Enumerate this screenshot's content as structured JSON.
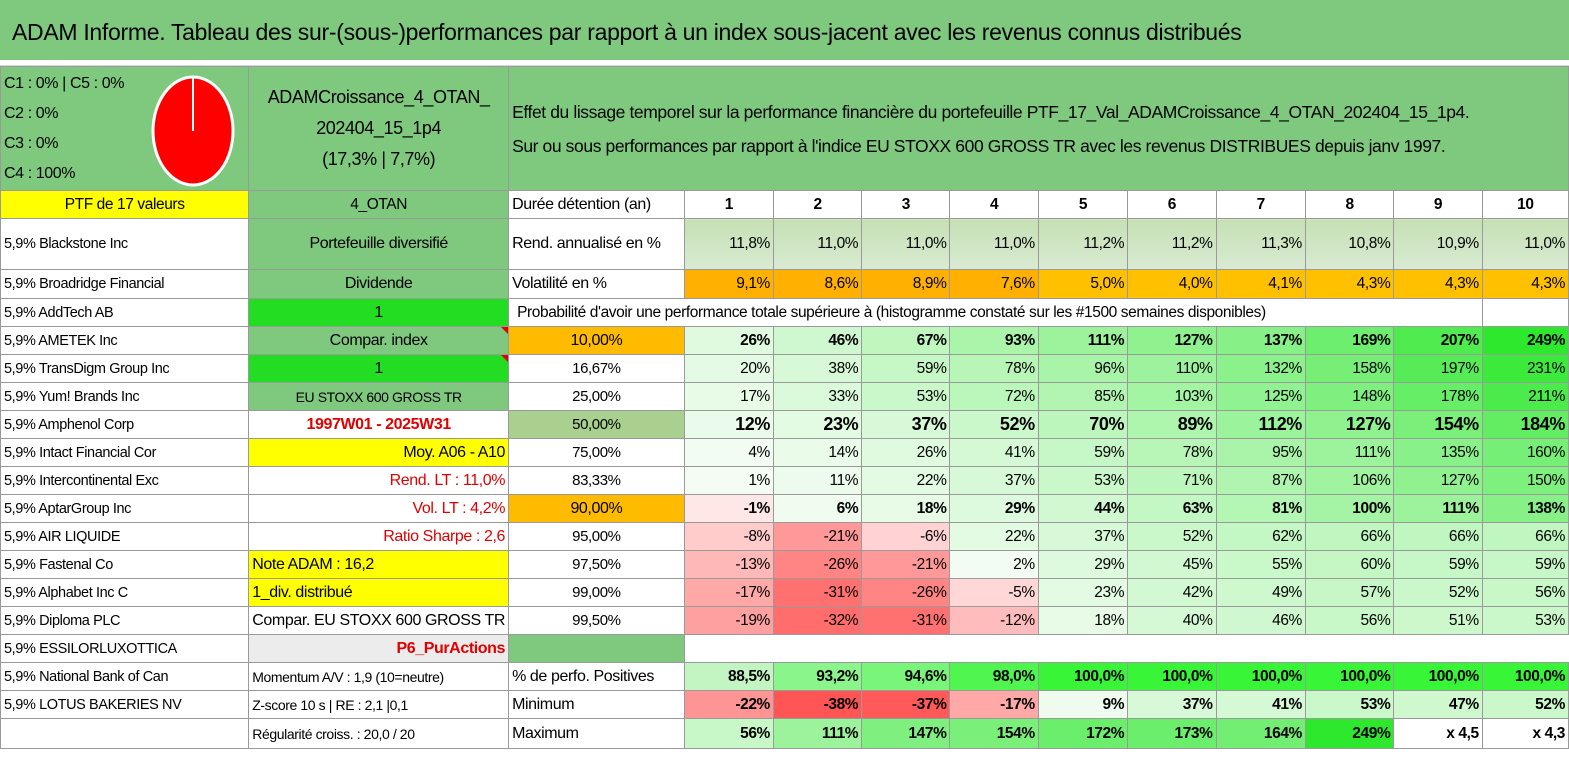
{
  "title": "ADAM Informe. Tableau des sur-(sous-)performances par rapport à un index sous-jacent avec les revenus connus distribués",
  "classes": [
    "C1 : 0% | C5 : 0%",
    "C2 : 0%",
    "C3 : 0%",
    "C4 : 100%"
  ],
  "pie": {
    "color": "#ff0000",
    "c4_share": 1.0
  },
  "portfolio": {
    "name_line1": "ADAMCroissance_4_OTAN_",
    "name_line2": "202404_15_1p4",
    "name_line3": "(17,3% | 7,7%)"
  },
  "effect": {
    "line1": "Effet du lissage temporel sur la performance financière du portefeuille PTF_17_Val_ADAMCroissance_4_OTAN_202404_15_1p4.",
    "line2": "Sur ou sous performances par rapport à l'indice EU STOXX 600 GROSS TR avec les revenus DISTRIBUES depuis janv 1997."
  },
  "ptf_header": "PTF de 17 valeurs",
  "holdings": [
    "5,9% Blackstone Inc",
    "5,9% Broadridge Financial",
    "5,9% AddTech AB",
    "5,9% AMETEK Inc",
    "5,9% TransDigm Group Inc",
    "5,9% Yum! Brands Inc",
    "5,9% Amphenol Corp",
    "5,9% Intact Financial Cor",
    "5,9% Intercontinental Exc",
    "5,9% AptarGroup Inc",
    "5,9% AIR LIQUIDE",
    "5,9% Fastenal Co",
    "5,9% Alphabet Inc C",
    "5,9% Diploma PLC",
    "5,9% ESSILORLUXOTTICA",
    "5,9% National Bank of Can",
    "5,9% LOTUS BAKERIES NV",
    ""
  ],
  "info": [
    "4_OTAN",
    "Portefeuille diversifié",
    "Dividende",
    "1",
    "Compar. index",
    "1",
    "EU STOXX 600 GROSS TR",
    "1997W01 - 2025W31",
    "Moy. A06 - A10",
    "Rend. LT : 11,0%",
    "Vol. LT : 4,2%",
    "Ratio Sharpe : 2,6",
    "Note ADAM : 16,2",
    "1_div. distribué",
    "Compar. EU STOXX 600 GROSS TR",
    "P6_PurActions",
    "Momentum A/V : 1,9 (10=neutre)",
    "Z-score 10 s | RE : 2,1 |0,1",
    "Régularité croiss. : 20,0 / 20"
  ],
  "duration": {
    "label": "Durée détention (an)",
    "years": [
      "1",
      "2",
      "3",
      "4",
      "5",
      "6",
      "7",
      "8",
      "9",
      "10"
    ]
  },
  "rend": {
    "label": "Rend. annualisé en %",
    "values": [
      "11,8%",
      "11,0%",
      "11,0%",
      "11,0%",
      "11,2%",
      "11,2%",
      "11,3%",
      "10,8%",
      "10,9%",
      "11,0%"
    ]
  },
  "vol": {
    "label": "Volatilité en %",
    "values": [
      "9,1%",
      "8,6%",
      "8,9%",
      "7,6%",
      "5,0%",
      "4,0%",
      "4,1%",
      "4,3%",
      "4,3%",
      "4,3%"
    ]
  },
  "prob_title": "Probabilité d'avoir une performance totale supérieure à (histogramme constaté sur les #1500 semaines disponibles)",
  "prob_rows": [
    {
      "p": "10,00%",
      "v": [
        "26%",
        "46%",
        "67%",
        "93%",
        "111%",
        "127%",
        "137%",
        "169%",
        "207%",
        "249%"
      ]
    },
    {
      "p": "16,67%",
      "v": [
        "20%",
        "38%",
        "59%",
        "78%",
        "96%",
        "110%",
        "132%",
        "158%",
        "197%",
        "231%"
      ]
    },
    {
      "p": "25,00%",
      "v": [
        "17%",
        "33%",
        "53%",
        "72%",
        "85%",
        "103%",
        "125%",
        "148%",
        "178%",
        "211%"
      ]
    },
    {
      "p": "50,00%",
      "v": [
        "12%",
        "23%",
        "37%",
        "52%",
        "70%",
        "89%",
        "112%",
        "127%",
        "154%",
        "184%"
      ]
    },
    {
      "p": "75,00%",
      "v": [
        "4%",
        "14%",
        "26%",
        "41%",
        "59%",
        "78%",
        "95%",
        "111%",
        "135%",
        "160%"
      ]
    },
    {
      "p": "83,33%",
      "v": [
        "1%",
        "11%",
        "22%",
        "37%",
        "53%",
        "71%",
        "87%",
        "106%",
        "127%",
        "150%"
      ]
    },
    {
      "p": "90,00%",
      "v": [
        "-1%",
        "6%",
        "18%",
        "29%",
        "44%",
        "63%",
        "81%",
        "100%",
        "111%",
        "138%"
      ]
    },
    {
      "p": "95,00%",
      "v": [
        "-8%",
        "-21%",
        "-6%",
        "22%",
        "37%",
        "52%",
        "62%",
        "66%",
        "66%",
        "66%"
      ]
    },
    {
      "p": "97,50%",
      "v": [
        "-13%",
        "-26%",
        "-21%",
        "2%",
        "29%",
        "45%",
        "55%",
        "60%",
        "59%",
        "59%"
      ]
    },
    {
      "p": "99,00%",
      "v": [
        "-17%",
        "-31%",
        "-26%",
        "-5%",
        "23%",
        "42%",
        "49%",
        "57%",
        "52%",
        "56%"
      ]
    },
    {
      "p": "99,50%",
      "v": [
        "-19%",
        "-32%",
        "-31%",
        "-12%",
        "18%",
        "40%",
        "46%",
        "56%",
        "51%",
        "53%"
      ]
    }
  ],
  "pos": {
    "label": "% de perfo. Positives",
    "values": [
      "88,5%",
      "93,2%",
      "94,6%",
      "98,0%",
      "100,0%",
      "100,0%",
      "100,0%",
      "100,0%",
      "100,0%",
      "100,0%"
    ]
  },
  "min": {
    "label": "Minimum",
    "values": [
      "-22%",
      "-38%",
      "-37%",
      "-17%",
      "9%",
      "37%",
      "41%",
      "53%",
      "47%",
      "52%"
    ]
  },
  "max": {
    "label": "Maximum",
    "values": [
      "56%",
      "111%",
      "147%",
      "154%",
      "172%",
      "173%",
      "164%",
      "249%",
      "x 4,5",
      "x 4,3"
    ]
  }
}
